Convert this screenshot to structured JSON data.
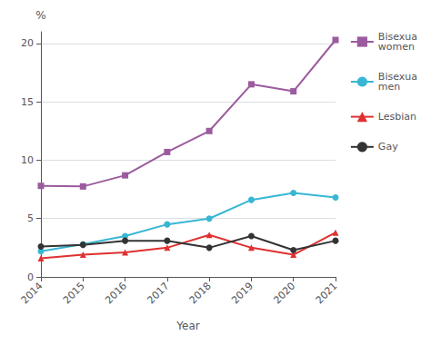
{
  "chart_data": {
    "type": "line",
    "xlabel": "Year",
    "ylabel": "%",
    "categories": [
      "2014",
      "2015",
      "2016",
      "2017",
      "2018",
      "2019",
      "2020",
      "2021"
    ],
    "series": [
      {
        "name": "Bisexua\nwomen",
        "color": "#9b5b9e",
        "marker": "square",
        "values": [
          7.8,
          7.75,
          8.7,
          10.7,
          12.5,
          16.5,
          15.9,
          20.3
        ]
      },
      {
        "name": "Bisexua\nmen",
        "color": "#38b6d4",
        "marker": "circle",
        "values": [
          2.2,
          2.8,
          3.5,
          4.5,
          5.0,
          6.6,
          7.2,
          6.8
        ]
      },
      {
        "name": "Lesbian",
        "color": "#e03030",
        "marker": "triangle",
        "values": [
          1.6,
          1.9,
          2.1,
          2.5,
          3.6,
          2.5,
          1.9,
          3.8
        ]
      },
      {
        "name": "Gay",
        "color": "#333333",
        "marker": "circle",
        "values": [
          2.6,
          2.75,
          3.1,
          3.1,
          2.5,
          3.5,
          2.3,
          3.1
        ]
      }
    ],
    "ylim": [
      0,
      21
    ],
    "yticks": [
      0,
      5,
      10,
      15,
      20
    ],
    "grid": true,
    "legend": "right"
  }
}
